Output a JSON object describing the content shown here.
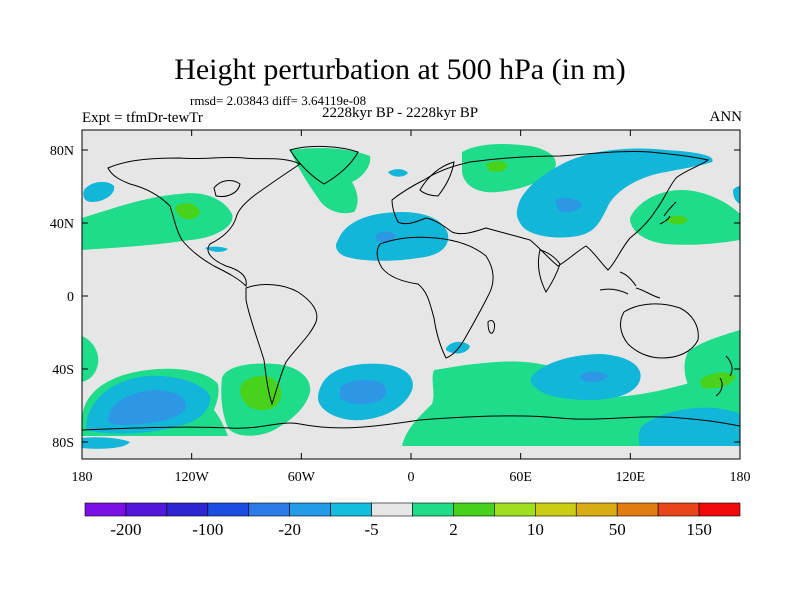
{
  "title": "Height perturbation at 500 hPa (in m)",
  "stats": "rmsd= 2.03843 diff= 3.64119e-08",
  "experiment": "Expt = tfmDr-tewTr",
  "period": "2228kyr BP - 2228kyr BP",
  "season": "ANN",
  "colors": {
    "background": "#e6e6e6",
    "neg_2_5": "#12b6d8",
    "neg_5_20": "#2d97e6",
    "pos_2_10": "#1fdc8a",
    "pos_10_50": "#48d21c"
  },
  "axes": {
    "lat_labels": [
      "80N",
      "40N",
      "0",
      "40S",
      "80S"
    ],
    "lon_labels": [
      "180",
      "120W",
      "60W",
      "0",
      "60E",
      "120E",
      "180"
    ]
  },
  "colorbar": {
    "colors": [
      "#7a10e6",
      "#5516dc",
      "#2e24d2",
      "#1a4de0",
      "#2d7be8",
      "#239be6",
      "#12bee0",
      "#e6e6e6",
      "#1fdc8a",
      "#46d21c",
      "#9ee01e",
      "#cbcd12",
      "#d8ac12",
      "#e07c10",
      "#e8461a",
      "#f00a0a"
    ],
    "labels": [
      "-200",
      "-100",
      "-20",
      "-5",
      "2",
      "10",
      "50",
      "150"
    ]
  }
}
